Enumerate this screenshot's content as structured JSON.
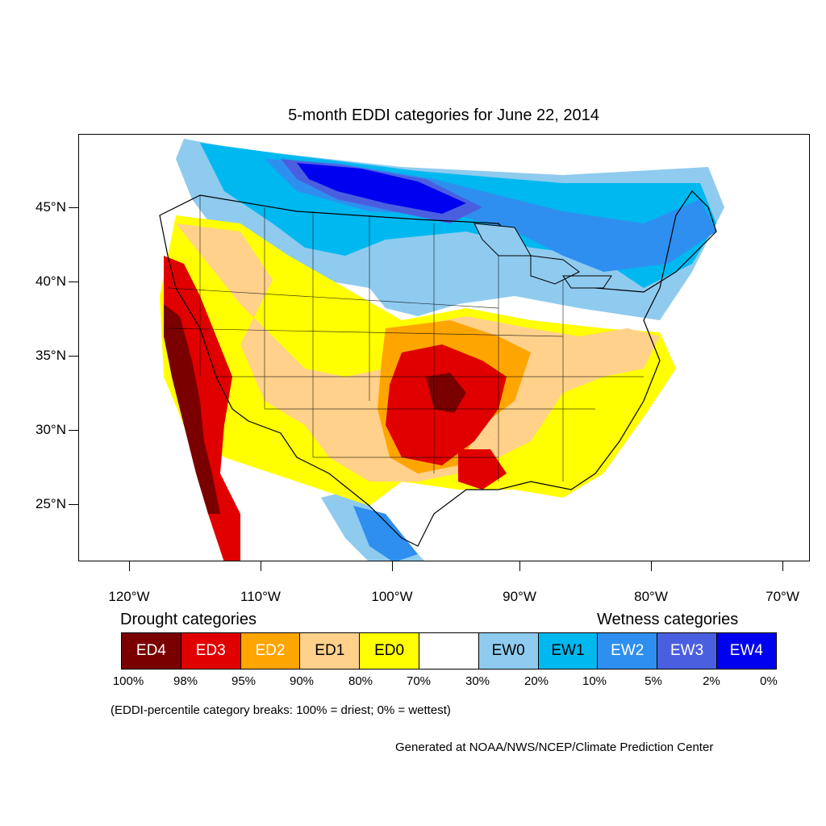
{
  "title": "5-month EDDI categories for June 22, 2014",
  "axes": {
    "lat_labels": [
      "45°N",
      "40°N",
      "35°N",
      "30°N",
      "25°N"
    ],
    "lon_labels": [
      "120°W",
      "110°W",
      "100°W",
      "90°W",
      "80°W",
      "70°W"
    ]
  },
  "legend": {
    "drought_heading": "Drought categories",
    "wetness_heading": "Wetness categories",
    "categories": [
      {
        "label": "ED4",
        "color": "#7a0000",
        "text_color": "#ffffff"
      },
      {
        "label": "ED3",
        "color": "#e00000",
        "text_color": "#ffffff"
      },
      {
        "label": "ED2",
        "color": "#ffa500",
        "text_color": "#ffffff"
      },
      {
        "label": "ED1",
        "color": "#ffd18a",
        "text_color": "#000000"
      },
      {
        "label": "ED0",
        "color": "#ffff00",
        "text_color": "#000000"
      },
      {
        "label": "",
        "color": "#ffffff",
        "text_color": "#000000"
      },
      {
        "label": "EW0",
        "color": "#8fcbef",
        "text_color": "#000000"
      },
      {
        "label": "EW1",
        "color": "#00b8f0",
        "text_color": "#000000"
      },
      {
        "label": "EW2",
        "color": "#2f8ff0",
        "text_color": "#ffffff"
      },
      {
        "label": "EW3",
        "color": "#4a5fe0",
        "text_color": "#ffffff"
      },
      {
        "label": "EW4",
        "color": "#0000f0",
        "text_color": "#ffffff"
      }
    ],
    "percent_breaks": [
      "100%",
      "98%",
      "95%",
      "90%",
      "80%",
      "70%",
      "30%",
      "20%",
      "10%",
      "5%",
      "2%",
      "0%"
    ]
  },
  "breaks_note": "(EDDI-percentile category breaks: 100% = driest; 0% = wettest)",
  "credit": "Generated at NOAA/NWS/NCEP/Climate Prediction Center"
}
